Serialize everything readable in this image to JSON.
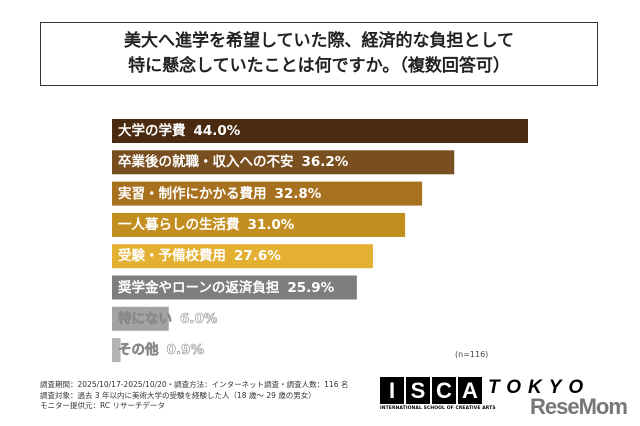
{
  "title": {
    "line1": "美大へ進学を希望していた際、経済的な負担として",
    "line2": "特に懸念していたことは何ですか。（複数回答可）"
  },
  "chart_data": {
    "type": "bar",
    "orientation": "horizontal",
    "categories": [
      "大学の学費",
      "卒業後の就職・収入への不安",
      "実習・制作にかかる費用",
      "一人暮らしの生活費",
      "受験・予備校費用",
      "奨学金やローンの返済負担",
      "特にない",
      "その他"
    ],
    "values": [
      44.0,
      36.2,
      32.8,
      31.0,
      27.6,
      25.9,
      6.0,
      0.9
    ],
    "value_labels": [
      "44.0%",
      "36.2%",
      "32.8%",
      "31.0%",
      "27.6%",
      "25.9%",
      "6.0%",
      "0.9%"
    ],
    "colors": [
      "#4b2b0f",
      "#7a4f1f",
      "#a8711f",
      "#c28e1f",
      "#e4b032",
      "#7e7e7e",
      "#a3a3a3",
      "#b3b3b3"
    ],
    "xlim": [
      0,
      44
    ],
    "grid": false,
    "unit": "%"
  },
  "n_label": "(n=116)",
  "footnote": {
    "line1": "調査期間：2025/10/17-2025/10/20・調査方法：インターネット調査・調査人数：116 名",
    "line2": "調査対象：過去 3 年以内に美術大学の受験を経験した人（18 歳〜 29 歳の男女）",
    "line3": "モニター提供元：RC リサーチデータ"
  },
  "logo": {
    "letters": [
      "I",
      "S",
      "C",
      "A"
    ],
    "tokyo": "TOKYO",
    "subtitle": "INTERNATIONAL SCHOOL OF CREATIVE ARTS"
  },
  "watermark": "ReseMom"
}
